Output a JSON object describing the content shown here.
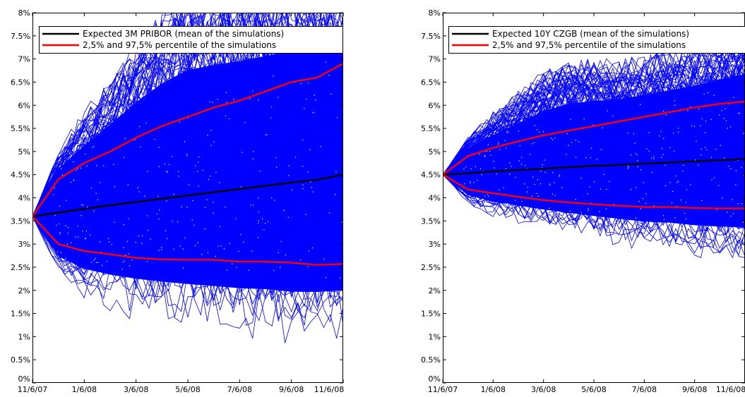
{
  "chart_data": [
    {
      "type": "line",
      "title": "",
      "xlabel": "",
      "ylabel": "",
      "x_ticks": [
        "11/6/07",
        "1/6/08",
        "3/6/08",
        "5/6/08",
        "7/6/08",
        "9/6/08",
        "11/6/08"
      ],
      "xlim": [
        0,
        12
      ],
      "ylim": [
        0,
        8
      ],
      "y_ticks": [
        "0%",
        "0.5%",
        "1%",
        "1.5%",
        "2%",
        "2.5%",
        "3%",
        "3.5%",
        "4%",
        "4.5%",
        "5%",
        "5.5%",
        "6%",
        "6.5%",
        "7%",
        "7.5%",
        "8%"
      ],
      "grid": false,
      "legend_position": "top-right",
      "simulation_band": {
        "color": "#0000ff",
        "outer_upper": [
          3.6,
          4.9,
          5.6,
          6.3,
          7.0,
          7.6,
          8.0,
          8.0,
          8.0,
          8.0,
          8.0,
          8.0,
          8.0
        ],
        "outer_lower": [
          3.6,
          2.4,
          2.0,
          1.8,
          1.7,
          1.6,
          1.5,
          1.4,
          1.35,
          1.3,
          1.2,
          1.25,
          1.3
        ]
      },
      "series": [
        {
          "name": "Expected 3M PRIBOR (mean of the simulations)",
          "color": "#000000",
          "x": [
            0,
            1,
            2,
            3,
            4,
            5,
            6,
            7,
            8,
            9,
            10,
            11,
            12
          ],
          "values": [
            3.6,
            3.68,
            3.76,
            3.84,
            3.91,
            3.98,
            4.05,
            4.12,
            4.19,
            4.26,
            4.33,
            4.39,
            4.5
          ]
        },
        {
          "name": "2,5% and 97,5% percentile of the simulations",
          "color": "#ff0000",
          "x": [
            0,
            1,
            2,
            3,
            4,
            5,
            6,
            7,
            8,
            9,
            10,
            11,
            12
          ],
          "values": [
            3.6,
            4.4,
            4.75,
            5.0,
            5.3,
            5.55,
            5.75,
            5.95,
            6.1,
            6.3,
            6.5,
            6.6,
            6.9
          ]
        },
        {
          "name": "",
          "color": "#ff0000",
          "x": [
            0,
            1,
            2,
            3,
            4,
            5,
            6,
            7,
            8,
            9,
            10,
            11,
            12
          ],
          "values": [
            3.6,
            3.0,
            2.85,
            2.78,
            2.7,
            2.67,
            2.66,
            2.66,
            2.62,
            2.62,
            2.6,
            2.55,
            2.57
          ]
        }
      ]
    },
    {
      "type": "line",
      "title": "",
      "xlabel": "",
      "ylabel": "",
      "x_ticks": [
        "11/6/07",
        "1/6/08",
        "3/6/08",
        "5/6/08",
        "7/6/08",
        "9/6/08",
        "11/6/08"
      ],
      "xlim": [
        0,
        12
      ],
      "ylim": [
        0,
        8
      ],
      "y_ticks": [
        "0%",
        "0.5%",
        "1%",
        "1.5%",
        "2%",
        "2.5%",
        "3%",
        "3.5%",
        "4%",
        "4.5%",
        "5%",
        "5.5%",
        "6%",
        "6.5%",
        "7%",
        "7.5%",
        "8%"
      ],
      "grid": false,
      "legend_position": "top-right",
      "simulation_band": {
        "color": "#0000ff",
        "outer_upper": [
          4.5,
          5.25,
          5.7,
          6.1,
          6.5,
          6.75,
          6.75,
          6.7,
          6.8,
          6.9,
          7.0,
          7.2,
          7.4
        ],
        "outer_lower": [
          4.5,
          3.9,
          3.7,
          3.6,
          3.5,
          3.4,
          3.3,
          3.2,
          3.1,
          3.05,
          2.95,
          2.9,
          2.85
        ]
      },
      "series": [
        {
          "name": "Expected 10Y CZGB (mean of the simulations)",
          "color": "#000000",
          "x": [
            0,
            1,
            2,
            3,
            4,
            5,
            6,
            7,
            8,
            9,
            10,
            11,
            12
          ],
          "values": [
            4.5,
            4.53,
            4.57,
            4.6,
            4.63,
            4.66,
            4.69,
            4.71,
            4.74,
            4.76,
            4.79,
            4.81,
            4.84
          ]
        },
        {
          "name": "2,5% and 97,5% percentile of the simulations",
          "color": "#ff0000",
          "x": [
            0,
            1,
            2,
            3,
            4,
            5,
            6,
            7,
            8,
            9,
            10,
            11,
            12
          ],
          "values": [
            4.5,
            4.9,
            5.08,
            5.22,
            5.35,
            5.45,
            5.55,
            5.65,
            5.75,
            5.85,
            5.95,
            6.03,
            6.08
          ]
        },
        {
          "name": "",
          "color": "#ff0000",
          "x": [
            0,
            1,
            2,
            3,
            4,
            5,
            6,
            7,
            8,
            9,
            10,
            11,
            12
          ],
          "values": [
            4.5,
            4.18,
            4.1,
            4.02,
            3.95,
            3.9,
            3.86,
            3.83,
            3.8,
            3.8,
            3.78,
            3.77,
            3.77
          ]
        }
      ]
    }
  ]
}
